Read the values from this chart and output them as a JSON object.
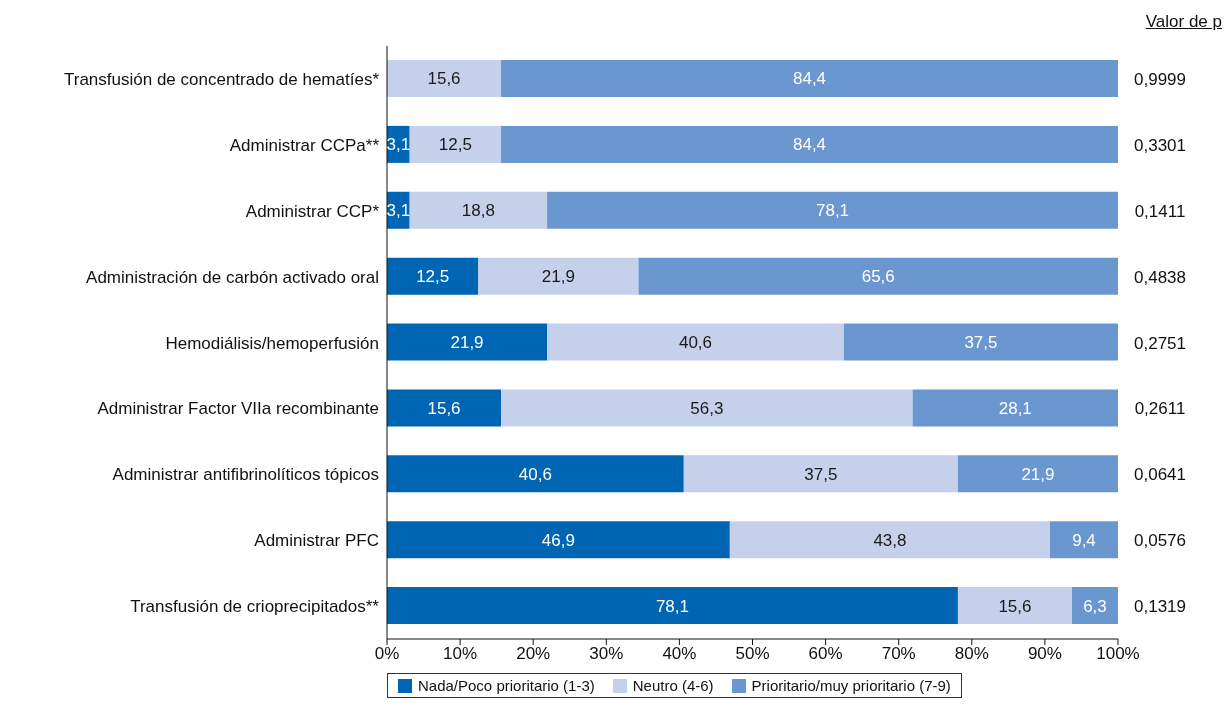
{
  "chart_data": {
    "type": "bar",
    "orientation": "horizontal",
    "stacked": true,
    "categories": [
      "Transfusión de concentrado de hematíes*",
      "Administrar CCPa**",
      "Administrar CCP*",
      "Administración de carbón activado oral",
      "Hemodiálisis/hemoperfusión",
      "Administrar Factor VIIa recombinante",
      "Administrar antifibrinolíticos tópicos",
      "Administrar PFC",
      "Transfusión de crioprecipitados**"
    ],
    "series": [
      {
        "name": "Nada/Poco prioritario (1-3)",
        "color": "#0066b3",
        "values": [
          null,
          3.1,
          3.1,
          12.5,
          21.9,
          15.6,
          40.6,
          46.9,
          78.1
        ],
        "value_labels": [
          null,
          "3,1",
          "3,1",
          "12,5",
          "21,9",
          "15,6",
          "40,6",
          "46,9",
          "78,1"
        ]
      },
      {
        "name": "Neutro (4-6)",
        "color": "#c5d0ea",
        "values": [
          15.6,
          12.5,
          18.8,
          21.9,
          40.6,
          56.3,
          37.5,
          43.8,
          15.6
        ],
        "value_labels": [
          "15,6",
          "12,5",
          "18,8",
          "21,9",
          "40,6",
          "56,3",
          "37,5",
          "43,8",
          "15,6"
        ]
      },
      {
        "name": "Prioritario/muy prioritario (7-9)",
        "color": "#6a97d0",
        "values": [
          84.4,
          84.4,
          78.1,
          65.6,
          37.5,
          28.1,
          21.9,
          9.4,
          6.3
        ],
        "value_labels": [
          "84,4",
          "84,4",
          "78,1",
          "65,6",
          "37,5",
          "28,1",
          "21,9",
          "9,4",
          "6,3"
        ]
      }
    ],
    "xlim": [
      0,
      100
    ],
    "xticks": [
      {
        "value": 0,
        "label": "0%"
      },
      {
        "value": 10,
        "label": "10%"
      },
      {
        "value": 20,
        "label": "20%"
      },
      {
        "value": 30,
        "label": "30%"
      },
      {
        "value": 40,
        "label": "40%"
      },
      {
        "value": 50,
        "label": "50%"
      },
      {
        "value": 60,
        "label": "60%"
      },
      {
        "value": 70,
        "label": "70%"
      },
      {
        "value": 80,
        "label": "80%"
      },
      {
        "value": 90,
        "label": "90%"
      },
      {
        "value": 100,
        "label": "100%"
      }
    ],
    "annotations": [
      "Valor de p",
      "0,9999",
      "0,3301",
      "0,1411",
      "0,4838",
      "0,2751",
      "0,2611",
      "0,0641",
      "0,0576",
      "0,1319"
    ],
    "grid": false,
    "legend": "bottom"
  }
}
